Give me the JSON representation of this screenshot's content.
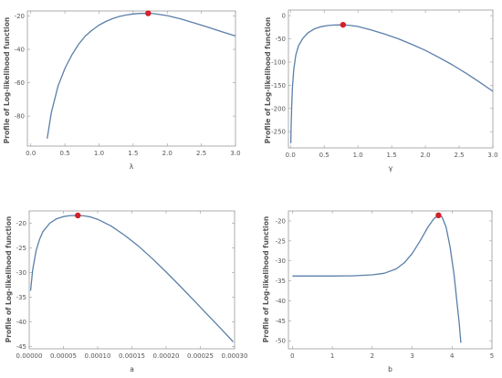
{
  "colors": {
    "curve": "#5b7fa8",
    "peak": "#d51f2a",
    "frame": "#9a9a9a",
    "text": "#555555"
  },
  "chart_data": [
    {
      "type": "line",
      "xlabel": "λ",
      "ylabel": "Profile of Log-likelihood function",
      "xlim": [
        -0.05,
        3.0
      ],
      "ylim": [
        -98,
        -17
      ],
      "xticks": [
        0.0,
        0.5,
        1.0,
        1.5,
        2.0,
        2.5,
        3.0
      ],
      "xtick_labels": [
        "0.0",
        "0.5",
        "1.0",
        "1.5",
        "2.0",
        "2.5",
        "3.0"
      ],
      "yticks": [
        -20,
        -40,
        -60,
        -80
      ],
      "ytick_labels": [
        "-20",
        "-40",
        "-60",
        "-80"
      ],
      "x": [
        0.24,
        0.3,
        0.4,
        0.5,
        0.6,
        0.7,
        0.8,
        0.9,
        1.0,
        1.1,
        1.2,
        1.3,
        1.4,
        1.5,
        1.6,
        1.72,
        1.8,
        2.0,
        2.2,
        2.4,
        2.6,
        2.8,
        3.0
      ],
      "y": [
        -93.5,
        -78,
        -62,
        -51.5,
        -43.5,
        -37,
        -32,
        -28.5,
        -25.5,
        -23.3,
        -21.6,
        -20.3,
        -19.4,
        -18.8,
        -18.5,
        -18.4,
        -18.6,
        -19.8,
        -21.8,
        -24.2,
        -26.8,
        -29.4,
        -32.0
      ],
      "highlight": {
        "x": 1.72,
        "y": -18.4
      }
    },
    {
      "type": "line",
      "xlabel": "γ",
      "ylabel": "Profile of Log-likelihood function",
      "xlim": [
        -0.03,
        3.0
      ],
      "ylim": [
        -285,
        12
      ],
      "xticks": [
        0.0,
        0.5,
        1.0,
        1.5,
        2.0,
        2.5,
        3.0
      ],
      "xtick_labels": [
        "0.0",
        "0.5",
        "1.0",
        "1.5",
        "2.0",
        "2.5",
        "3.0"
      ],
      "yticks": [
        0,
        -50,
        -100,
        -150,
        -200,
        -250
      ],
      "ytick_labels": [
        "0",
        "-50",
        "-100",
        "-150",
        "-200",
        "-250"
      ],
      "x": [
        0.005,
        0.01,
        0.02,
        0.03,
        0.05,
        0.08,
        0.12,
        0.18,
        0.25,
        0.35,
        0.45,
        0.55,
        0.65,
        0.78,
        0.9,
        1.0,
        1.2,
        1.4,
        1.6,
        1.8,
        2.0,
        2.2,
        2.4,
        2.6,
        2.8,
        3.0
      ],
      "y": [
        -275,
        -235,
        -190,
        -155,
        -115,
        -85,
        -65,
        -50,
        -38,
        -29,
        -24,
        -21.5,
        -20.2,
        -19.8,
        -21.5,
        -23.5,
        -31,
        -40,
        -50,
        -62,
        -75,
        -90,
        -106,
        -124,
        -143,
        -163
      ],
      "highlight": {
        "x": 0.78,
        "y": -19.8
      }
    },
    {
      "type": "line",
      "xlabel": "a",
      "ylabel": "Profile of Log-likelihood function",
      "xlim": [
        0.0,
        0.0003
      ],
      "ylim": [
        -45.5,
        -17.5
      ],
      "xticks": [
        0.0,
        5e-05,
        0.0001,
        0.00015,
        0.0002,
        0.00025,
        0.0003
      ],
      "xtick_labels": [
        "0.00000",
        "0.00005",
        "0.00010",
        "0.00015",
        "0.00020",
        "0.00025",
        "0.00030"
      ],
      "yticks": [
        -20,
        -25,
        -30,
        -35,
        -40,
        -45
      ],
      "ytick_labels": [
        "-20",
        "-25",
        "-30",
        "-35",
        "-40",
        "-45"
      ],
      "x": [
        2e-06,
        5e-06,
        1e-05,
        1.5e-05,
        2e-05,
        3e-05,
        4e-05,
        5e-05,
        6e-05,
        7.1e-05,
        8e-05,
        9e-05,
        0.0001,
        0.00012,
        0.00014,
        0.00016,
        0.00018,
        0.0002,
        0.00022,
        0.00024,
        0.00026,
        0.00028,
        0.000298
      ],
      "y": [
        -33.7,
        -29.5,
        -25.6,
        -23.3,
        -21.7,
        -20.0,
        -19.1,
        -18.65,
        -18.45,
        -18.42,
        -18.5,
        -18.75,
        -19.2,
        -20.6,
        -22.5,
        -24.7,
        -27.2,
        -29.9,
        -32.7,
        -35.6,
        -38.5,
        -41.4,
        -44.1
      ],
      "highlight": {
        "x": 7.1e-05,
        "y": -18.42
      }
    },
    {
      "type": "line",
      "xlabel": "b",
      "ylabel": "Profile of Log-likelihood function",
      "xlim": [
        -0.1,
        5.0
      ],
      "ylim": [
        -52,
        -17.5
      ],
      "xticks": [
        0,
        1,
        2,
        3,
        4,
        5
      ],
      "xtick_labels": [
        "0",
        "1",
        "2",
        "3",
        "4",
        "5"
      ],
      "yticks": [
        -20,
        -25,
        -30,
        -35,
        -40,
        -45,
        -50
      ],
      "ytick_labels": [
        "-20",
        "-25",
        "-30",
        "-35",
        "-40",
        "-45",
        "-50"
      ],
      "x": [
        0.0,
        0.5,
        1.0,
        1.5,
        2.0,
        2.3,
        2.6,
        2.8,
        3.0,
        3.2,
        3.4,
        3.55,
        3.66,
        3.75,
        3.85,
        3.95,
        4.05,
        4.12,
        4.18,
        4.22
      ],
      "y": [
        -33.8,
        -33.8,
        -33.8,
        -33.75,
        -33.5,
        -33.1,
        -32.0,
        -30.5,
        -28.2,
        -25.0,
        -21.5,
        -19.4,
        -18.6,
        -19.0,
        -21.5,
        -26.5,
        -33.5,
        -40.0,
        -45.5,
        -50.5
      ],
      "highlight": {
        "x": 3.66,
        "y": -18.6
      }
    }
  ]
}
